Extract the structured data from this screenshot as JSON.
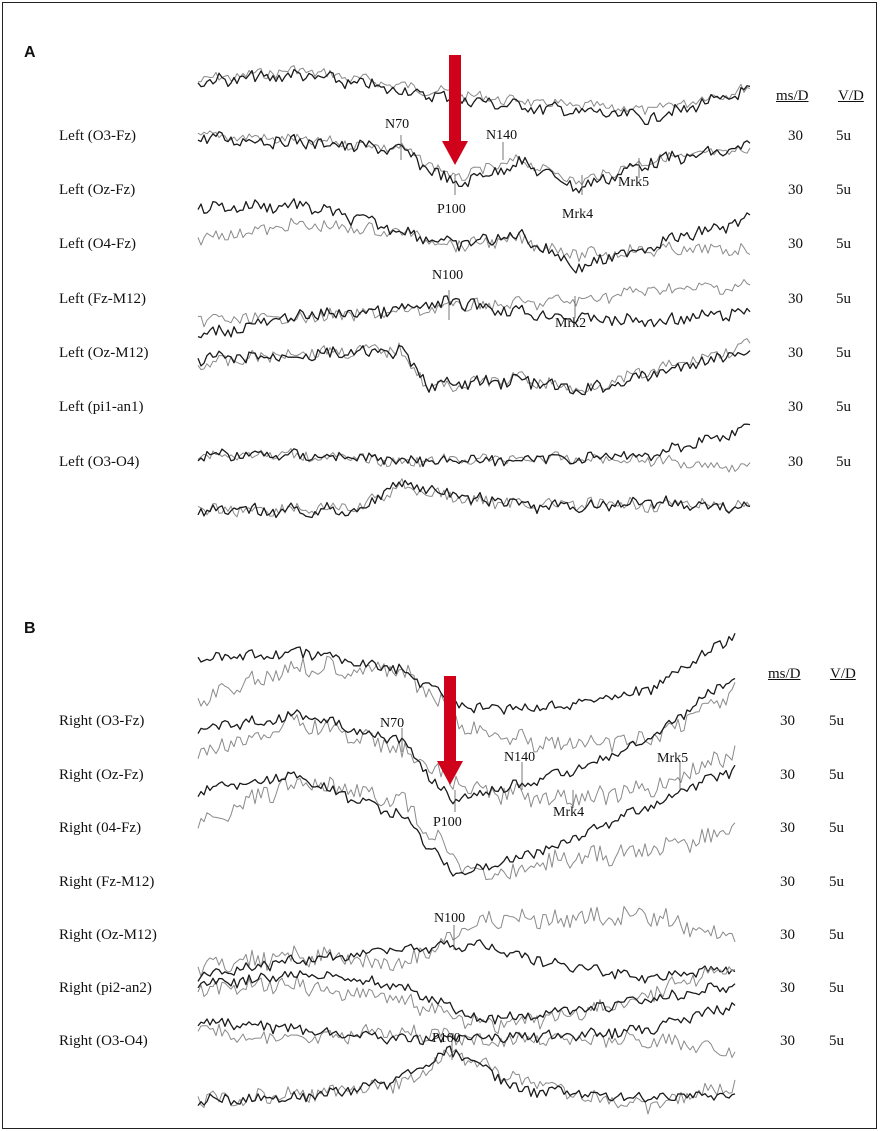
{
  "chart_data": [
    {
      "panel": "A",
      "type": "line",
      "columns": {
        "ms": "ms/D",
        "v": "V/D"
      },
      "channels": [
        {
          "label": "Left (O3-Fz)",
          "ms": "30",
          "v": "5u"
        },
        {
          "label": "Left (Oz-Fz)",
          "ms": "30",
          "v": "5u"
        },
        {
          "label": "Left (O4-Fz)",
          "ms": "30",
          "v": "5u"
        },
        {
          "label": "Left (Fz-M12)",
          "ms": "30",
          "v": "5u"
        },
        {
          "label": "Left (Oz-M12)",
          "ms": "30",
          "v": "5u"
        },
        {
          "label": "Left (pi1-an1)",
          "ms": "30",
          "v": "5u"
        },
        {
          "label": "Left (O3-O4)",
          "ms": "30",
          "v": "5u"
        }
      ],
      "markers": [
        "N70",
        "N140",
        "P100",
        "Mrk5",
        "Mrk4",
        "N100",
        "Mrk2"
      ],
      "stimulus_arrow": true
    },
    {
      "panel": "B",
      "type": "line",
      "columns": {
        "ms": "ms/D",
        "v": "V/D"
      },
      "channels": [
        {
          "label": "Right (O3-Fz)",
          "ms": "30",
          "v": "5u"
        },
        {
          "label": "Right (Oz-Fz)",
          "ms": "30",
          "v": "5u"
        },
        {
          "label": "Right (04-Fz)",
          "ms": "30",
          "v": "5u"
        },
        {
          "label": "Right (Fz-M12)",
          "ms": "30",
          "v": "5u"
        },
        {
          "label": "Right (Oz-M12)",
          "ms": "30",
          "v": "5u"
        },
        {
          "label": "Right (pi2-an2)",
          "ms": "30",
          "v": "5u"
        },
        {
          "label": "Right (O3-O4)",
          "ms": "30",
          "v": "5u"
        }
      ],
      "markers": [
        "N70",
        "N140",
        "Mrk5",
        "P100",
        "Mrk4",
        "N100",
        "P100"
      ],
      "stimulus_arrow": true
    }
  ],
  "colors": {
    "trace_dark": "#1a1a1a",
    "trace_light": "#8a8a8a",
    "arrow": "#d0021b"
  }
}
